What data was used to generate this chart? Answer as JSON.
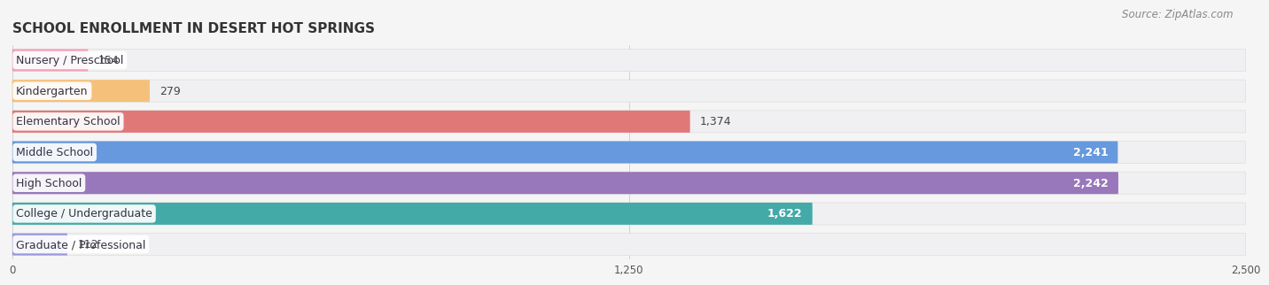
{
  "title": "SCHOOL ENROLLMENT IN DESERT HOT SPRINGS",
  "source": "Source: ZipAtlas.com",
  "categories": [
    "Nursery / Preschool",
    "Kindergarten",
    "Elementary School",
    "Middle School",
    "High School",
    "College / Undergraduate",
    "Graduate / Professional"
  ],
  "values": [
    154,
    279,
    1374,
    2241,
    2242,
    1622,
    112
  ],
  "bar_colors": [
    "#f2a0b8",
    "#f5c17a",
    "#e07878",
    "#6699dd",
    "#9977bb",
    "#44aaa8",
    "#9999dd"
  ],
  "bg_colors": [
    "#efefef",
    "#efefef",
    "#efefef",
    "#efefef",
    "#efefef",
    "#efefef",
    "#efefef"
  ],
  "xlim": [
    0,
    2500
  ],
  "xticks": [
    0,
    1250,
    2500
  ],
  "value_labels": [
    "154",
    "279",
    "1,374",
    "2,241",
    "2,242",
    "1,622",
    "112"
  ],
  "title_fontsize": 11,
  "source_fontsize": 8.5,
  "label_fontsize": 9,
  "value_fontsize": 9
}
